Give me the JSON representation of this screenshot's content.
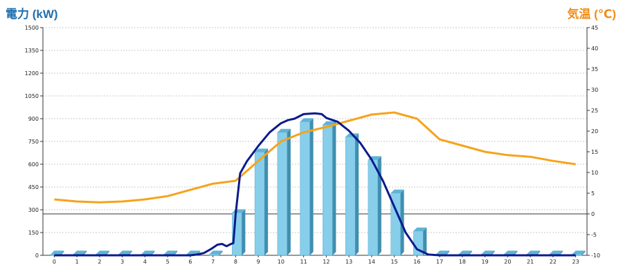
{
  "header": {
    "left_axis_title": "電力 (kW)",
    "right_axis_title": "気温 (℃)"
  },
  "chart_data": {
    "type": "bar",
    "categories": [
      "0",
      "1",
      "2",
      "3",
      "4",
      "5",
      "6",
      "7",
      "8",
      "9",
      "10",
      "11",
      "12",
      "13",
      "14",
      "15",
      "16",
      "17",
      "18",
      "19",
      "20",
      "21",
      "22",
      "23"
    ],
    "left_axis": {
      "min": 0,
      "max": 1500,
      "ticks": [
        0,
        150,
        300,
        450,
        600,
        750,
        900,
        1050,
        1200,
        1350,
        1500
      ]
    },
    "right_axis": {
      "min": -10,
      "max": 45,
      "ticks": [
        -10,
        -5,
        0,
        5,
        10,
        15,
        20,
        25,
        30,
        35,
        40,
        45
      ]
    },
    "grid": true,
    "colors": {
      "bars": "#87ceeb",
      "power_line": "#0a1a8c",
      "temperature_line": "#f7a21b",
      "left_title": "#1f6fae",
      "right_title": "#f28c18"
    },
    "bars": {
      "axis": "left",
      "values": [
        8,
        8,
        8,
        8,
        8,
        8,
        8,
        8,
        280,
        680,
        810,
        880,
        860,
        780,
        630,
        410,
        160,
        8,
        8,
        8,
        8,
        8,
        8,
        8
      ]
    },
    "power_line": {
      "axis": "left",
      "x": [
        0,
        1,
        2,
        3,
        4,
        5,
        6,
        6.3,
        6.6,
        6.9,
        7.2,
        7.4,
        7.6,
        7.8,
        7.9,
        8.0,
        8.2,
        8.5,
        9.0,
        9.5,
        10.0,
        10.3,
        10.6,
        11.0,
        11.5,
        11.8,
        12.0,
        12.5,
        13.0,
        13.5,
        14.0,
        14.5,
        15.0,
        15.5,
        16.0,
        16.5,
        17.0,
        17.5,
        18,
        19,
        20,
        21,
        22,
        23
      ],
      "values": [
        0,
        0,
        0,
        0,
        0,
        0,
        0,
        5,
        15,
        40,
        70,
        75,
        60,
        75,
        80,
        270,
        540,
        620,
        720,
        810,
        870,
        890,
        900,
        930,
        935,
        930,
        905,
        880,
        820,
        740,
        630,
        490,
        320,
        150,
        40,
        5,
        0,
        0,
        0,
        0,
        0,
        0,
        0,
        0
      ]
    },
    "temperature_line": {
      "axis": "right",
      "values": [
        3.5,
        3.0,
        2.8,
        3.0,
        3.5,
        4.3,
        5.8,
        7.3,
        8.0,
        12.8,
        17.5,
        19.7,
        21.0,
        22.5,
        24.0,
        24.5,
        23.0,
        18.0,
        16.5,
        15.0,
        14.2,
        13.8,
        12.8,
        12.0
      ]
    }
  }
}
